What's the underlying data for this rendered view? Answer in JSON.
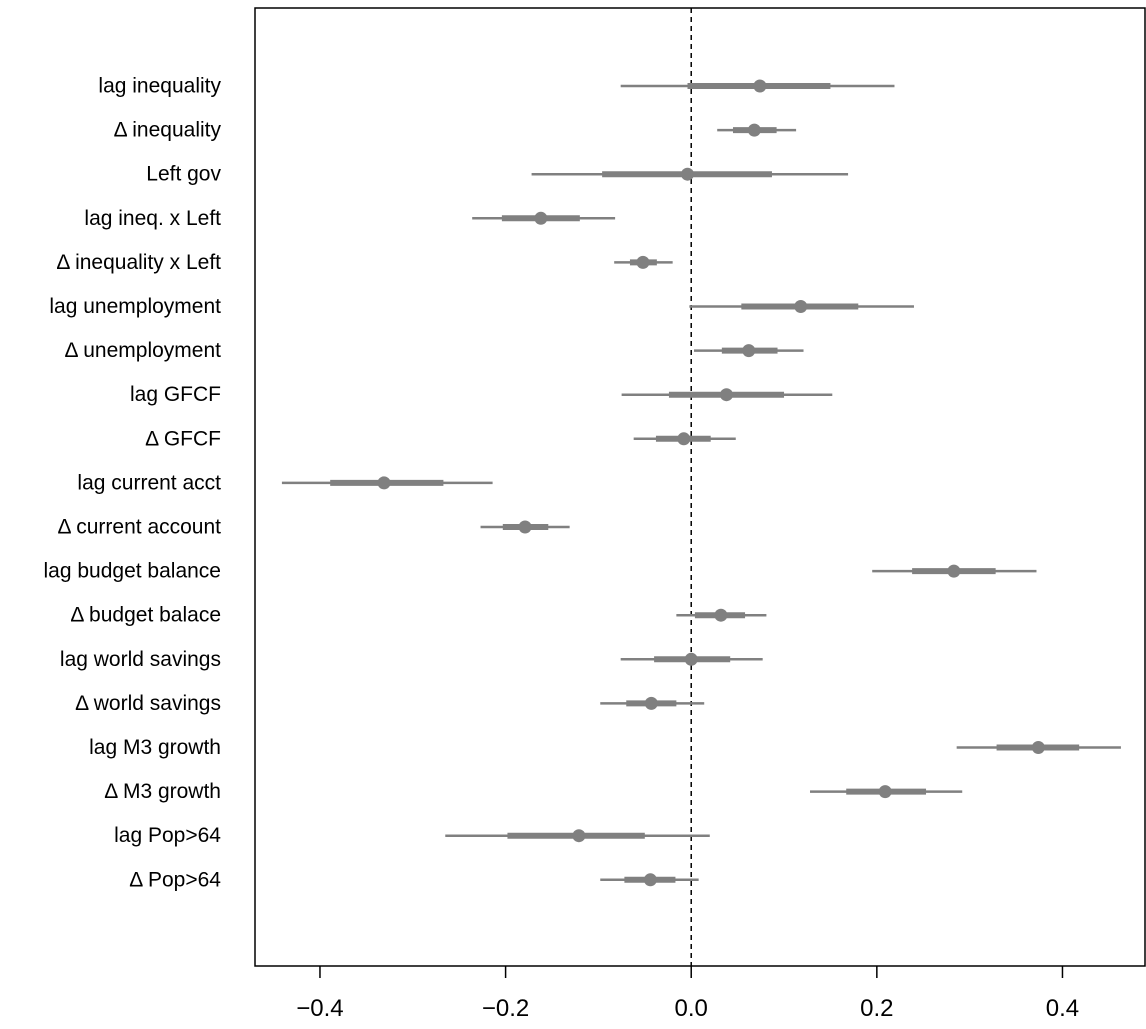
{
  "chart_data": {
    "type": "coefficient-plot",
    "title": "",
    "xlabel": "",
    "ylabel": "",
    "xlim": [
      -0.47,
      0.49
    ],
    "x_ticks": [
      -0.4,
      -0.2,
      0.0,
      0.2,
      0.4
    ],
    "x_tick_labels": [
      "−0.4",
      "−0.2",
      "0.0",
      "0.2",
      "0.4"
    ],
    "reference_line": 0.0,
    "reference_line_style": "dashed",
    "grid": false,
    "legend": "none",
    "colors": {
      "marks": "#808080",
      "axes": "#000000",
      "reference": "#000000"
    },
    "categories": [
      "lag inequality",
      "Δ inequality",
      "Left gov",
      "lag ineq. x Left",
      "Δ inequality x Left",
      "lag unemployment",
      "Δ unemployment",
      "lag GFCF",
      "Δ GFCF",
      "lag current acct",
      "Δ current account",
      "lag budget balance",
      "Δ budget balace",
      "lag world savings",
      "Δ world savings",
      "lag M3 growth",
      "Δ M3 growth",
      "lag Pop>64",
      "Δ Pop>64"
    ],
    "estimates": [
      0.074,
      0.068,
      -0.004,
      -0.162,
      -0.052,
      0.118,
      0.062,
      0.038,
      -0.008,
      -0.331,
      -0.179,
      0.283,
      0.032,
      0.0,
      -0.043,
      0.374,
      0.209,
      -0.121,
      -0.044
    ],
    "inner_low": [
      -0.004,
      0.045,
      -0.096,
      -0.204,
      -0.066,
      0.054,
      0.033,
      -0.024,
      -0.038,
      -0.389,
      -0.203,
      0.238,
      0.004,
      -0.04,
      -0.07,
      0.329,
      0.167,
      -0.198,
      -0.072
    ],
    "inner_high": [
      0.15,
      0.092,
      0.087,
      -0.12,
      -0.037,
      0.18,
      0.093,
      0.1,
      0.021,
      -0.267,
      -0.154,
      0.328,
      0.058,
      0.042,
      -0.016,
      0.418,
      0.253,
      -0.05,
      -0.017
    ],
    "outer_low": [
      -0.076,
      0.028,
      -0.172,
      -0.236,
      -0.083,
      -0.002,
      0.003,
      -0.075,
      -0.062,
      -0.441,
      -0.227,
      0.195,
      -0.016,
      -0.076,
      -0.098,
      0.286,
      0.128,
      -0.265,
      -0.098
    ],
    "outer_high": [
      0.219,
      0.113,
      0.169,
      -0.082,
      -0.02,
      0.24,
      0.121,
      0.152,
      0.048,
      -0.214,
      -0.131,
      0.372,
      0.081,
      0.077,
      0.014,
      0.463,
      0.292,
      0.02,
      0.008
    ]
  }
}
